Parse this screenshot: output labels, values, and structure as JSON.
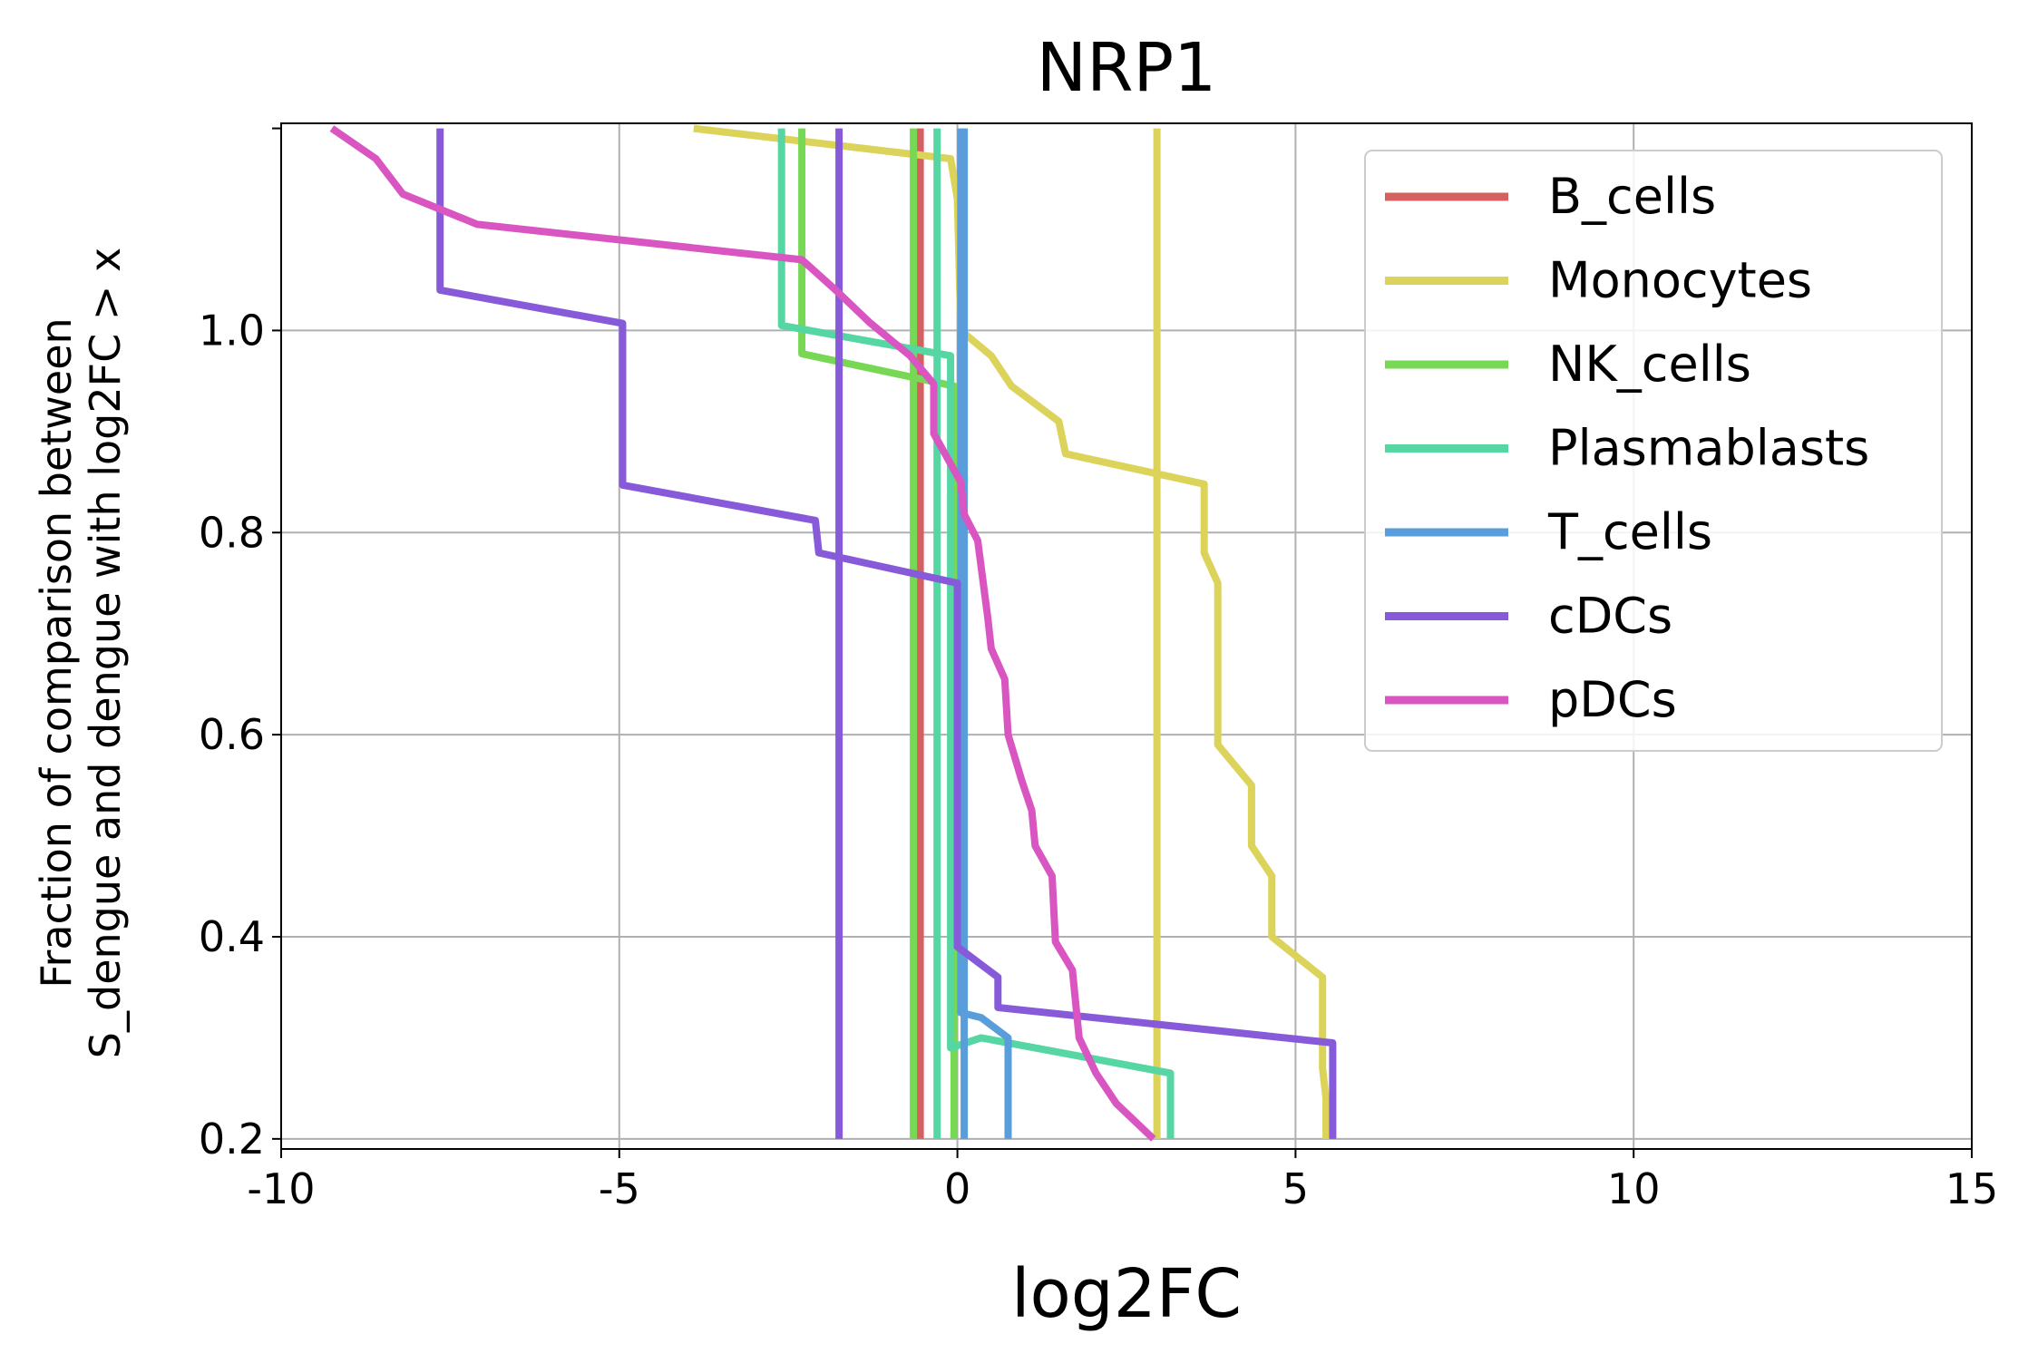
{
  "chart_data": {
    "type": "line",
    "title": "NRP1",
    "xlabel": "log2FC",
    "ylabel_lines": [
      "Fraction of comparison between",
      "S_dengue and dengue with log2FC > x"
    ],
    "xlim": [
      -10,
      15
    ],
    "ylim": [
      0.19,
      1.205
    ],
    "xticks": [
      -10,
      -5,
      0,
      5,
      10,
      15
    ],
    "xtick_labels": [
      "-10",
      "-5",
      "0",
      "5",
      "10",
      "15"
    ],
    "yticks": [
      0.2,
      0.4,
      0.6,
      0.8,
      1.0
    ],
    "ytick_labels": [
      "0.2",
      "0.4",
      "0.6",
      "0.8",
      "1.0"
    ],
    "grid": true,
    "legend_position": "top-right",
    "series": [
      {
        "name": "B_cells",
        "color": "#d65f5f",
        "points": [
          [
            -0.55,
            1.2
          ],
          [
            -0.55,
            0.2
          ]
        ]
      },
      {
        "name": "Monocytes",
        "color": "#dbd35a",
        "points": [
          [
            -3.9,
            1.2
          ],
          [
            -0.1,
            1.17
          ],
          [
            0.0,
            1.13
          ],
          [
            0.05,
            1.0
          ],
          [
            0.5,
            0.975
          ],
          [
            0.8,
            0.945
          ],
          [
            1.5,
            0.91
          ],
          [
            1.6,
            0.878
          ],
          [
            3.65,
            0.848
          ],
          [
            3.65,
            0.78
          ],
          [
            3.85,
            0.75
          ],
          [
            3.85,
            0.59
          ],
          [
            4.35,
            0.55
          ],
          [
            4.35,
            0.49
          ],
          [
            4.65,
            0.46
          ],
          [
            4.65,
            0.4
          ],
          [
            5.4,
            0.36
          ],
          [
            5.4,
            0.27
          ],
          [
            5.45,
            0.24
          ],
          [
            5.45,
            0.2
          ]
        ]
      },
      {
        "name": "Monocytes",
        "color": "#dbd35a",
        "points": [
          [
            2.95,
            1.2
          ],
          [
            2.95,
            0.2
          ]
        ]
      },
      {
        "name": "NK_cells",
        "color": "#77d855",
        "points": [
          [
            -2.3,
            1.2
          ],
          [
            -2.3,
            0.977
          ],
          [
            -0.05,
            0.945
          ],
          [
            -0.05,
            0.2
          ]
        ]
      },
      {
        "name": "NK_cells",
        "color": "#77d855",
        "points": [
          [
            -0.65,
            1.2
          ],
          [
            -0.65,
            0.2
          ]
        ]
      },
      {
        "name": "Plasmablasts",
        "color": "#55d6a3",
        "points": [
          [
            -2.6,
            1.2
          ],
          [
            -2.6,
            1.005
          ],
          [
            -0.1,
            0.975
          ],
          [
            -0.1,
            0.29
          ],
          [
            0.35,
            0.3
          ],
          [
            3.15,
            0.265
          ],
          [
            3.15,
            0.2
          ]
        ]
      },
      {
        "name": "Plasmablasts",
        "color": "#55d6a3",
        "points": [
          [
            -0.3,
            1.2
          ],
          [
            -0.3,
            0.2
          ]
        ]
      },
      {
        "name": "T_cells",
        "color": "#5a9ddb",
        "points": [
          [
            0.05,
            1.2
          ],
          [
            0.05,
            0.325
          ],
          [
            0.35,
            0.32
          ],
          [
            0.75,
            0.3
          ],
          [
            0.75,
            0.2
          ]
        ]
      },
      {
        "name": "T_cells",
        "color": "#5a9ddb",
        "points": [
          [
            0.1,
            1.2
          ],
          [
            0.1,
            0.2
          ]
        ]
      },
      {
        "name": "cDCs",
        "color": "#865ad8",
        "points": [
          [
            -7.65,
            1.2
          ],
          [
            -7.65,
            1.04
          ],
          [
            -4.95,
            1.007
          ],
          [
            -4.95,
            0.847
          ],
          [
            -2.1,
            0.812
          ],
          [
            -2.05,
            0.78
          ],
          [
            0.0,
            0.75
          ],
          [
            0.0,
            0.39
          ],
          [
            0.6,
            0.36
          ],
          [
            0.6,
            0.33
          ],
          [
            5.55,
            0.295
          ],
          [
            5.55,
            0.2
          ]
        ]
      },
      {
        "name": "cDCs",
        "color": "#865ad8",
        "points": [
          [
            -1.75,
            1.2
          ],
          [
            -1.75,
            0.2
          ]
        ]
      },
      {
        "name": "pDCs",
        "color": "#d855c2",
        "points": [
          [
            -9.25,
            1.2
          ],
          [
            -8.6,
            1.17
          ],
          [
            -8.2,
            1.135
          ],
          [
            -7.1,
            1.105
          ],
          [
            -2.3,
            1.07
          ],
          [
            -1.8,
            1.04
          ],
          [
            -1.3,
            1.008
          ],
          [
            -0.7,
            0.975
          ],
          [
            -0.35,
            0.947
          ],
          [
            -0.35,
            0.898
          ],
          [
            0.05,
            0.85
          ],
          [
            0.1,
            0.818
          ],
          [
            0.3,
            0.792
          ],
          [
            0.45,
            0.715
          ],
          [
            0.5,
            0.685
          ],
          [
            0.7,
            0.655
          ],
          [
            0.75,
            0.6
          ],
          [
            0.95,
            0.555
          ],
          [
            1.1,
            0.525
          ],
          [
            1.15,
            0.49
          ],
          [
            1.4,
            0.46
          ],
          [
            1.45,
            0.395
          ],
          [
            1.7,
            0.367
          ],
          [
            1.8,
            0.3
          ],
          [
            2.05,
            0.265
          ],
          [
            2.35,
            0.235
          ],
          [
            2.9,
            0.2
          ]
        ]
      }
    ],
    "legend": [
      {
        "label": "B_cells",
        "color": "#d65f5f"
      },
      {
        "label": "Monocytes",
        "color": "#dbd35a"
      },
      {
        "label": "NK_cells",
        "color": "#77d855"
      },
      {
        "label": "Plasmablasts",
        "color": "#55d6a3"
      },
      {
        "label": "T_cells",
        "color": "#5a9ddb"
      },
      {
        "label": "cDCs",
        "color": "#865ad8"
      },
      {
        "label": "pDCs",
        "color": "#d855c2"
      }
    ]
  }
}
